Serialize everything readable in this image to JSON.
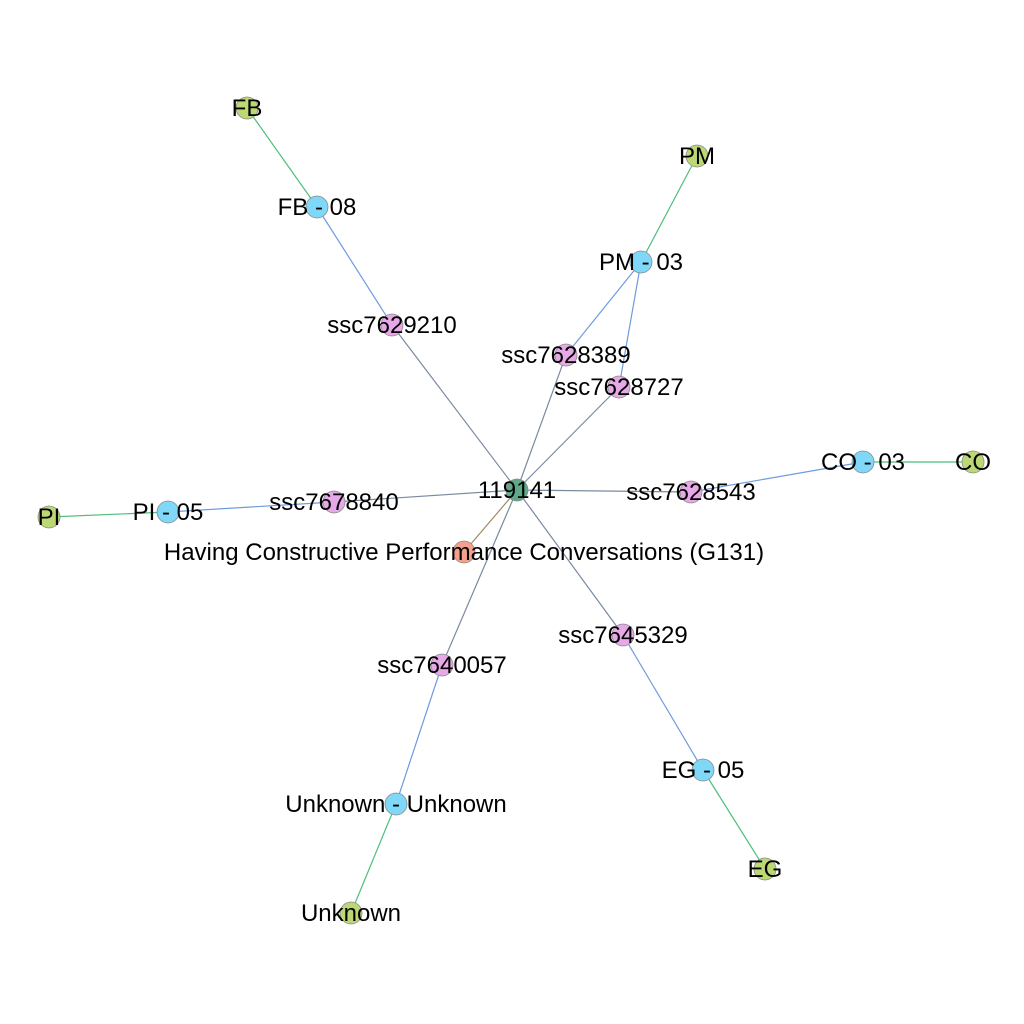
{
  "colors": {
    "background": "#ffffff",
    "node_types": {
      "root": "#5fa88a",
      "course": "#f4a08a",
      "item": "#e6a8e6",
      "group": "#7fd8f8",
      "category": "#bcd874"
    },
    "edge_types": {
      "root_item": "#7a8aa0",
      "item_group": "#6e9ae0",
      "group_category": "#4cbf7a",
      "root_course": "#a08a60"
    }
  },
  "nodes": [
    {
      "id": "root",
      "label": "119141",
      "type": "root"
    },
    {
      "id": "course",
      "label": "Having Constructive Performance Conversations (G131)",
      "type": "course"
    },
    {
      "id": "s9210",
      "label": "ssc7629210",
      "type": "item"
    },
    {
      "id": "s8389",
      "label": "ssc7628389",
      "type": "item"
    },
    {
      "id": "s8727",
      "label": "ssc7628727",
      "type": "item"
    },
    {
      "id": "s8543",
      "label": "ssc7628543",
      "type": "item"
    },
    {
      "id": "s8840",
      "label": "ssc7678840",
      "type": "item"
    },
    {
      "id": "s0057",
      "label": "ssc7640057",
      "type": "item"
    },
    {
      "id": "s5329",
      "label": "ssc7645329",
      "type": "item"
    },
    {
      "id": "fb08",
      "label": "FB - 08",
      "type": "group"
    },
    {
      "id": "pm03",
      "label": "PM - 03",
      "type": "group"
    },
    {
      "id": "co03",
      "label": "CO - 03",
      "type": "group"
    },
    {
      "id": "pi05",
      "label": "PI - 05",
      "type": "group"
    },
    {
      "id": "unk",
      "label": "Unknown - Unknown",
      "type": "group"
    },
    {
      "id": "eg05",
      "label": "EG - 05",
      "type": "group"
    },
    {
      "id": "fb",
      "label": "FB",
      "type": "category"
    },
    {
      "id": "pm",
      "label": "PM",
      "type": "category"
    },
    {
      "id": "co",
      "label": "CO",
      "type": "category"
    },
    {
      "id": "pi",
      "label": "PI",
      "type": "category"
    },
    {
      "id": "unkc",
      "label": "Unknown",
      "type": "category"
    },
    {
      "id": "eg",
      "label": "EG",
      "type": "category"
    }
  ],
  "edges": [
    {
      "source": "root",
      "target": "course",
      "type": "root_course"
    },
    {
      "source": "root",
      "target": "s9210",
      "type": "root_item"
    },
    {
      "source": "root",
      "target": "s8389",
      "type": "root_item"
    },
    {
      "source": "root",
      "target": "s8727",
      "type": "root_item"
    },
    {
      "source": "root",
      "target": "s8543",
      "type": "root_item"
    },
    {
      "source": "root",
      "target": "s8840",
      "type": "root_item"
    },
    {
      "source": "root",
      "target": "s0057",
      "type": "root_item"
    },
    {
      "source": "root",
      "target": "s5329",
      "type": "root_item"
    },
    {
      "source": "s9210",
      "target": "fb08",
      "type": "item_group"
    },
    {
      "source": "s8389",
      "target": "pm03",
      "type": "item_group"
    },
    {
      "source": "s8727",
      "target": "pm03",
      "type": "item_group"
    },
    {
      "source": "s8543",
      "target": "co03",
      "type": "item_group"
    },
    {
      "source": "s8840",
      "target": "pi05",
      "type": "item_group"
    },
    {
      "source": "s0057",
      "target": "unk",
      "type": "item_group"
    },
    {
      "source": "s5329",
      "target": "eg05",
      "type": "item_group"
    },
    {
      "source": "fb08",
      "target": "fb",
      "type": "group_category"
    },
    {
      "source": "pm03",
      "target": "pm",
      "type": "group_category"
    },
    {
      "source": "co03",
      "target": "co",
      "type": "group_category"
    },
    {
      "source": "pi05",
      "target": "pi",
      "type": "group_category"
    },
    {
      "source": "unk",
      "target": "unkc",
      "type": "group_category"
    },
    {
      "source": "eg05",
      "target": "eg",
      "type": "group_category"
    }
  ]
}
